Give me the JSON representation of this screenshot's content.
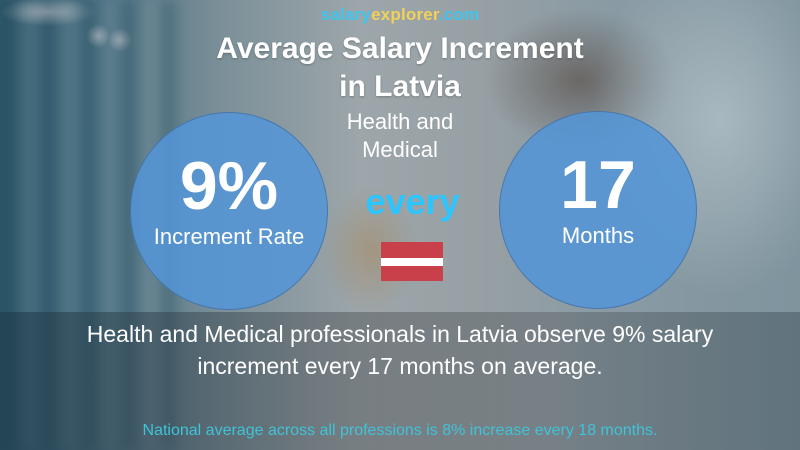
{
  "brand": {
    "part1": "salary",
    "part2": "explorer",
    "part3": ".com",
    "colors": {
      "part1": "#3ec6ee",
      "part2": "#f2d15a",
      "part3": "#3ec6ee"
    }
  },
  "header": {
    "title_line1": "Average Salary Increment",
    "title_line2": "in Latvia",
    "subtitle_line1": "Health and",
    "subtitle_line2": "Medical"
  },
  "stats": {
    "rate": {
      "value": "9%",
      "label": "Increment Rate"
    },
    "connector": "every",
    "period": {
      "value": "17",
      "label": "Months"
    }
  },
  "flag": {
    "country": "Latvia",
    "icon": "latvia-flag-icon",
    "colors": {
      "red": "#c8414a",
      "white": "#ffffff"
    }
  },
  "summary": {
    "line1": "Health and Medical professionals in Latvia observe 9% salary",
    "line2": "increment every 17 months on average."
  },
  "national": {
    "text": "National average across all professions is 8% increase every 18 months."
  },
  "colors": {
    "circle": "#5495d6",
    "every": "#2dc5ff",
    "national_text": "#3fc3d8"
  }
}
